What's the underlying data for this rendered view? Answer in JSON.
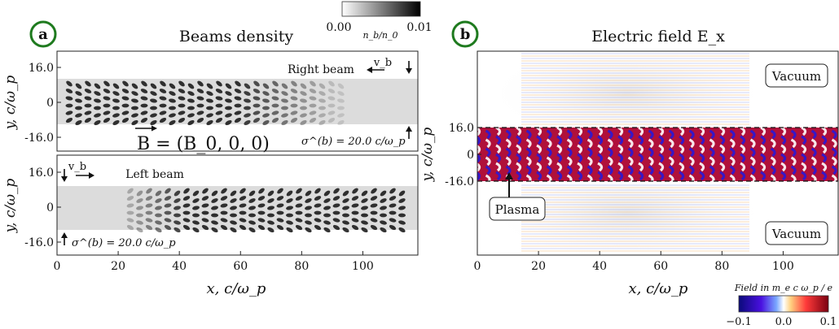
{
  "panel_a": {
    "badge": "a",
    "title": "Beams density",
    "colorbar": {
      "min_label": "0.00",
      "max_label": "0.01",
      "label": "n_b/n_0"
    },
    "top": {
      "name": "Right beam",
      "velocity_label": "v_b",
      "sigma_label": "σ^(b) = 20.0 c/ω_p",
      "field_label": "B = (B_0, 0, 0)"
    },
    "bottom": {
      "name": "Left beam",
      "velocity_label": "v_b",
      "sigma_label": "σ^(b) = 20.0 c/ω_p"
    },
    "ylabel": "y, c/ω_p",
    "xlabel": "x, c/ω_p",
    "yticks": [
      "16.0",
      "0",
      "-16.0"
    ],
    "xticks": [
      "0",
      "20",
      "40",
      "60",
      "80",
      "100"
    ]
  },
  "panel_b": {
    "badge": "b",
    "title": "Electric field E_x",
    "ylabel": "y, c/ω_p",
    "xlabel": "x, c/ω_p",
    "yticks": [
      "16.0",
      "0",
      "-16.0"
    ],
    "xticks": [
      "0",
      "20",
      "40",
      "60",
      "80",
      "100"
    ],
    "labels": {
      "vacuum_top": "Vacuum",
      "vacuum_bottom": "Vacuum",
      "plasma": "Plasma"
    },
    "colorbar": {
      "title": "Field in m_e c ω_p / e",
      "min_label": "−0.1",
      "mid_label": "0.0",
      "max_label": "0.1"
    }
  },
  "colors": {
    "badge_ring": "#1e7a1e",
    "field_blue": "#2a18d6",
    "field_red": "#d01a3a"
  }
}
